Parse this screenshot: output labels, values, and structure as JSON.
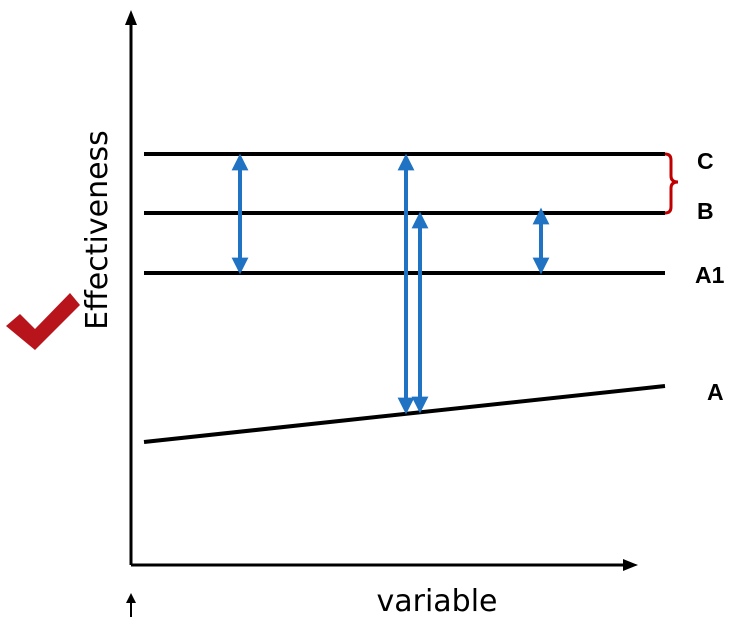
{
  "labels": {
    "y_axis": "Effectiveness",
    "x_axis": "variable",
    "line_c": "C",
    "line_b": "B",
    "line_a1": "A1",
    "line_a": "A"
  },
  "colors": {
    "lines": "#000000",
    "arrows": "#1f73c2",
    "brace": "#c00000",
    "checkmark": "#b8141c"
  },
  "icons": {
    "check": "checkmark-icon"
  }
}
